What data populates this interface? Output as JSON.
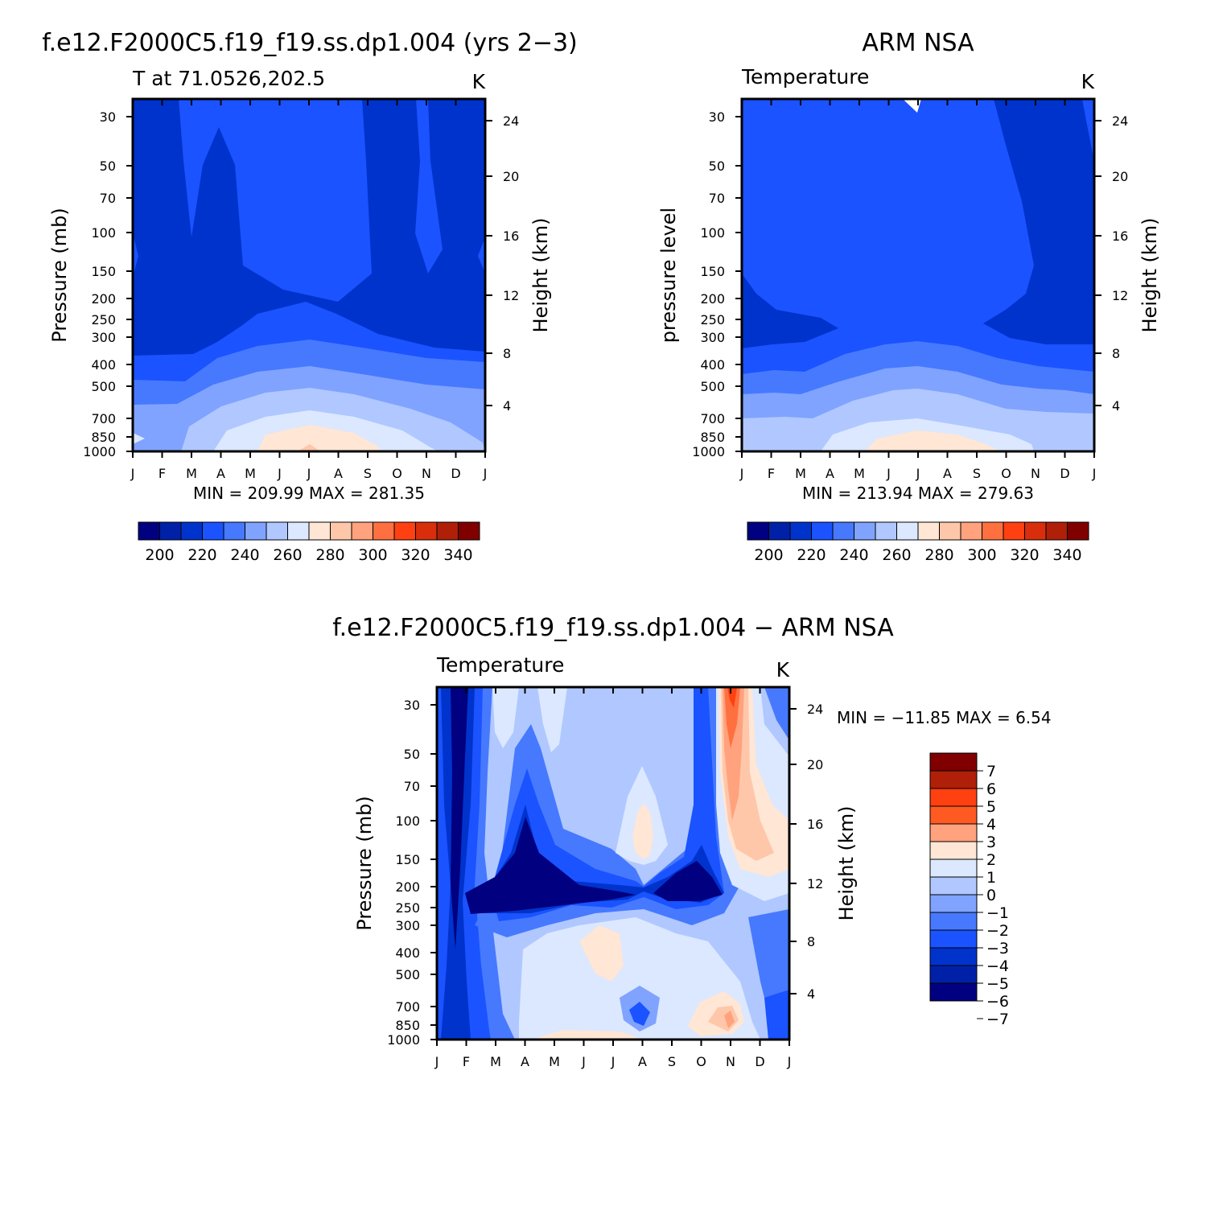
{
  "chart_data": [
    {
      "type": "heatmap",
      "title": "f.e12.F2000C5.f19_f19.ss.dp1.004 (yrs 2-3)",
      "subtitle_left": "T at 71.0526,202.5",
      "subtitle_right": "K",
      "ylabel": "Pressure (mb)",
      "ylabel_right": "Height (km)",
      "x_ticks": [
        "J",
        "F",
        "M",
        "A",
        "M",
        "J",
        "J",
        "A",
        "S",
        "O",
        "N",
        "D",
        "J"
      ],
      "y_ticks": [
        "30",
        "50",
        "70",
        "100",
        "150",
        "200",
        "250",
        "300",
        "400",
        "500",
        "700",
        "850",
        "1000"
      ],
      "y_right_ticks": [
        "24",
        "20",
        "16",
        "12",
        "8",
        "4"
      ],
      "stats": "MIN = 209.99 MAX = 281.35",
      "colorbar_labels": [
        "200",
        "220",
        "240",
        "260",
        "280",
        "300",
        "320",
        "340"
      ]
    },
    {
      "type": "heatmap",
      "title": "ARM NSA",
      "subtitle_left": "Temperature",
      "subtitle_right": "K",
      "ylabel": "pressure level",
      "ylabel_right": "Height (km)",
      "x_ticks": [
        "J",
        "F",
        "M",
        "A",
        "M",
        "J",
        "J",
        "A",
        "S",
        "O",
        "N",
        "D",
        "J"
      ],
      "y_ticks": [
        "30",
        "50",
        "70",
        "100",
        "150",
        "200",
        "250",
        "300",
        "400",
        "500",
        "700",
        "850",
        "1000"
      ],
      "y_right_ticks": [
        "24",
        "20",
        "16",
        "12",
        "8",
        "4"
      ],
      "stats": "MIN = 213.94 MAX = 279.63",
      "colorbar_labels": [
        "200",
        "220",
        "240",
        "260",
        "280",
        "300",
        "320",
        "340"
      ]
    },
    {
      "type": "heatmap",
      "title": "f.e12.F2000C5.f19_f19.ss.dp1.004 - ARM NSA",
      "subtitle_left": "Temperature",
      "subtitle_right": "K",
      "ylabel": "Pressure (mb)",
      "ylabel_right": "Height (km)",
      "x_ticks": [
        "J",
        "F",
        "M",
        "A",
        "M",
        "J",
        "J",
        "A",
        "S",
        "O",
        "N",
        "D",
        "J"
      ],
      "y_ticks": [
        "30",
        "50",
        "70",
        "100",
        "150",
        "200",
        "250",
        "300",
        "400",
        "500",
        "700",
        "850",
        "1000"
      ],
      "y_right_ticks": [
        "24",
        "20",
        "16",
        "12",
        "8",
        "4"
      ],
      "stats": "MIN = -11.85 MAX = 6.54",
      "colorbar_labels": [
        "7",
        "6",
        "5",
        "4",
        "3",
        "2",
        "1",
        "0",
        "-1",
        "-2",
        "-3",
        "-4",
        "-5",
        "-6",
        "-7"
      ]
    }
  ],
  "colors": {
    "abs_scale": [
      "#000080",
      "#0020a8",
      "#0033cc",
      "#1a53ff",
      "#4779ff",
      "#80a3ff",
      "#b0c8ff",
      "#dbe8ff",
      "#ffe6d5",
      "#ffc7aa",
      "#ffa27d",
      "#ff7040",
      "#ff4010",
      "#d92e0b",
      "#b01f08",
      "#800000"
    ],
    "diff_scale": [
      "#800000",
      "#b01f08",
      "#ff4010",
      "#ff5a22",
      "#ffa27d",
      "#ffe6d5",
      "#dbe8ff",
      "#b0c8ff",
      "#80a3ff",
      "#4779ff",
      "#1a53ff",
      "#0033cc",
      "#0020a8",
      "#000080"
    ]
  }
}
